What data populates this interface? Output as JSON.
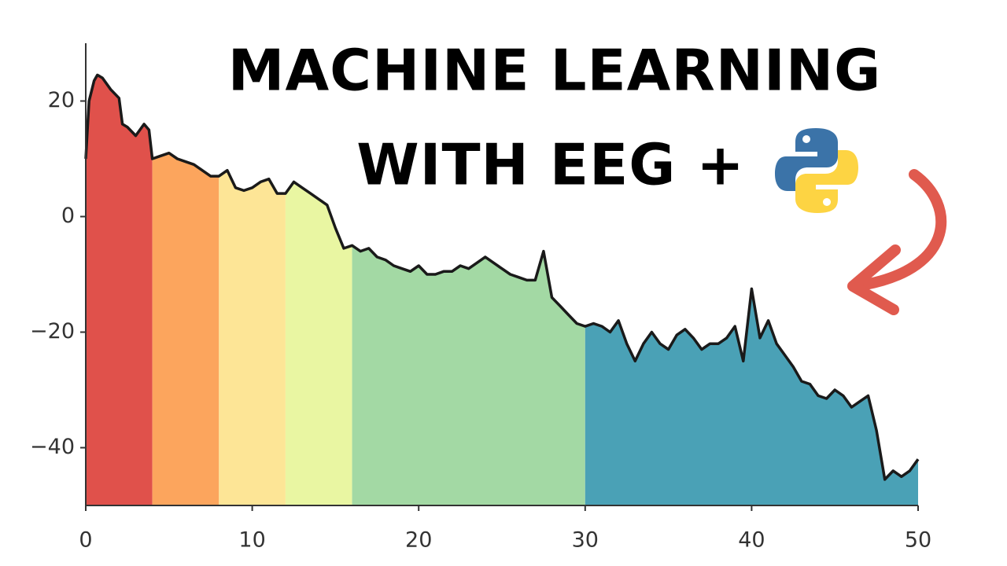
{
  "chart_data": {
    "type": "area",
    "title_lines": [
      "MACHINE LEARNING",
      "WITH EEG +"
    ],
    "x": [
      0,
      0.2,
      0.5,
      0.7,
      1,
      1.5,
      2,
      2.2,
      2.5,
      3,
      3.5,
      3.8,
      4,
      4.5,
      5,
      5.5,
      6,
      6.5,
      7,
      7.5,
      8,
      8.5,
      9,
      9.5,
      10,
      10.5,
      11,
      11.5,
      12,
      12.5,
      13,
      13.5,
      14,
      14.5,
      15,
      15.5,
      16,
      16.5,
      17,
      17.5,
      18,
      18.5,
      19,
      19.5,
      20,
      20.5,
      21,
      21.5,
      22,
      22.5,
      23,
      23.5,
      24,
      24.5,
      25,
      25.5,
      26,
      26.5,
      27,
      27.5,
      28,
      28.5,
      29,
      29.5,
      30,
      30.5,
      31,
      31.5,
      32,
      32.5,
      33,
      33.5,
      34,
      34.5,
      35,
      35.5,
      36,
      36.5,
      37,
      37.5,
      38,
      38.5,
      39,
      39.5,
      40,
      40.5,
      41,
      41.5,
      42,
      42.5,
      43,
      43.5,
      44,
      44.5,
      45,
      45.5,
      46,
      46.5,
      47,
      47.5,
      48,
      48.5,
      49,
      49.5,
      50
    ],
    "values": [
      10,
      20,
      23.5,
      24.5,
      24,
      22,
      20.5,
      16,
      15.5,
      14,
      16,
      15,
      10,
      10.5,
      11,
      10,
      9.5,
      9,
      8,
      7,
      7,
      8,
      5,
      4.5,
      5,
      6,
      6.5,
      4,
      4,
      6,
      5,
      4,
      3,
      2,
      -2,
      -5.5,
      -5,
      -6,
      -5.5,
      -7,
      -7.5,
      -8.5,
      -9,
      -9.5,
      -8.5,
      -10,
      -10,
      -9.5,
      -9.5,
      -8.5,
      -9,
      -8,
      -7,
      -8,
      -9,
      -10,
      -10.5,
      -11,
      -11,
      -6,
      -14,
      -15.5,
      -17,
      -18.5,
      -19,
      -18.5,
      -19,
      -20,
      -18,
      -22,
      -25,
      -22,
      -20,
      -22,
      -23,
      -20.5,
      -19.5,
      -21,
      -23,
      -22,
      -22,
      -21,
      -19,
      -25,
      -12.5,
      -21,
      -18,
      -22,
      -24,
      -26,
      -28.5,
      -29,
      -31,
      -31.5,
      -30,
      -31,
      -33,
      -32,
      -31,
      -37,
      -45.5,
      -44,
      -45,
      -44,
      -42
    ],
    "bands": [
      {
        "from": 0,
        "to": 4,
        "color": "#e0514b"
      },
      {
        "from": 4,
        "to": 8,
        "color": "#fca55d"
      },
      {
        "from": 8,
        "to": 12,
        "color": "#fde596"
      },
      {
        "from": 12,
        "to": 16,
        "color": "#e9f6a2"
      },
      {
        "from": 16,
        "to": 30,
        "color": "#a3d9a4"
      },
      {
        "from": 30,
        "to": 50,
        "color": "#4aa1b6"
      }
    ],
    "line_color": "#1a1a1a",
    "xlim": [
      0,
      50
    ],
    "ylim": [
      -50,
      30
    ],
    "xticks": [
      0,
      10,
      20,
      30,
      40,
      50
    ],
    "yticks": [
      {
        "value": -40,
        "label": "−40"
      },
      {
        "value": -20,
        "label": "−20"
      },
      0,
      20
    ]
  }
}
